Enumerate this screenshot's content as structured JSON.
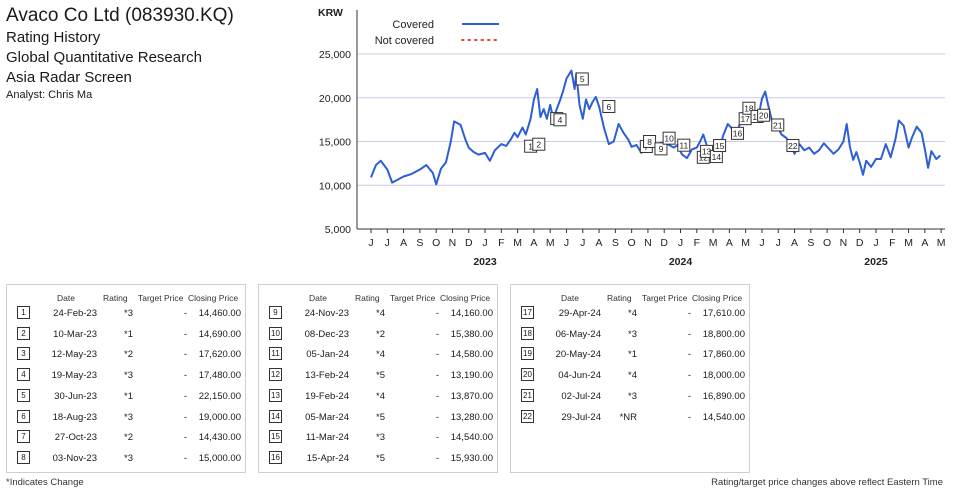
{
  "header": {
    "title": "Avaco Co Ltd (083930.KQ)",
    "subtitle1": "Rating History",
    "subtitle2": "Global Quantitative Research",
    "subtitle3": "Asia Radar Screen",
    "analyst": "Analyst: Chris Ma"
  },
  "colors": {
    "covered": "#2c5ed6",
    "not_covered": "#e8432e",
    "grid": "#c9cbe9"
  },
  "chart_data": {
    "type": "line",
    "ylabel": "KRW",
    "ylim": [
      5000,
      25000
    ],
    "yticks": [
      "5,000",
      "10,000",
      "15,000",
      "20,000",
      "25,000"
    ],
    "ytick_values": [
      5000,
      10000,
      15000,
      20000,
      25000
    ],
    "month_labels": [
      "J",
      "J",
      "A",
      "S",
      "O",
      "N",
      "D",
      "J",
      "F",
      "M",
      "A",
      "M",
      "J",
      "J",
      "A",
      "S",
      "O",
      "N",
      "D",
      "J",
      "F",
      "M",
      "A",
      "M",
      "J",
      "J",
      "A",
      "S",
      "O",
      "N",
      "D",
      "J",
      "F",
      "M",
      "A",
      "M"
    ],
    "year_labels": [
      {
        "label": "2023",
        "month_index": 7
      },
      {
        "label": "2024",
        "month_index": 19
      },
      {
        "label": "2025",
        "month_index": 31
      }
    ],
    "legend": [
      {
        "name": "Covered",
        "style": "solid"
      },
      {
        "name": "Not covered",
        "style": "dotted"
      }
    ],
    "series": [
      {
        "name": "Covered",
        "points": [
          [
            0,
            10900
          ],
          [
            0.3,
            12300
          ],
          [
            0.6,
            12800
          ],
          [
            1.0,
            11800
          ],
          [
            1.3,
            10300
          ],
          [
            1.7,
            10700
          ],
          [
            2.0,
            11000
          ],
          [
            2.5,
            11300
          ],
          [
            3.0,
            11800
          ],
          [
            3.4,
            12300
          ],
          [
            3.8,
            11400
          ],
          [
            4.0,
            10100
          ],
          [
            4.3,
            11900
          ],
          [
            4.6,
            12600
          ],
          [
            4.9,
            15000
          ],
          [
            5.1,
            17300
          ],
          [
            5.5,
            16900
          ],
          [
            5.8,
            15200
          ],
          [
            6.0,
            14300
          ],
          [
            6.3,
            13800
          ],
          [
            6.6,
            13500
          ],
          [
            7.0,
            13700
          ],
          [
            7.3,
            12800
          ],
          [
            7.6,
            14000
          ],
          [
            8.0,
            14700
          ],
          [
            8.3,
            14500
          ],
          [
            8.6,
            15300
          ],
          [
            8.8,
            16000
          ],
          [
            9.0,
            15500
          ],
          [
            9.3,
            16600
          ],
          [
            9.5,
            15800
          ],
          [
            9.8,
            17600
          ],
          [
            10.0,
            19800
          ],
          [
            10.2,
            21000
          ],
          [
            10.4,
            17800
          ],
          [
            10.6,
            18700
          ],
          [
            10.8,
            17600
          ],
          [
            11.0,
            19200
          ],
          [
            11.2,
            17500
          ],
          [
            11.4,
            18700
          ],
          [
            11.6,
            19700
          ],
          [
            11.8,
            20800
          ],
          [
            12.0,
            22200
          ],
          [
            12.3,
            23100
          ],
          [
            12.5,
            21000
          ],
          [
            12.6,
            22800
          ],
          [
            12.8,
            19200
          ],
          [
            13.0,
            17600
          ],
          [
            13.2,
            19800
          ],
          [
            13.4,
            18700
          ],
          [
            13.6,
            19500
          ],
          [
            13.8,
            20100
          ],
          [
            14.0,
            19000
          ],
          [
            14.3,
            16600
          ],
          [
            14.6,
            14700
          ],
          [
            14.9,
            15000
          ],
          [
            15.2,
            17000
          ],
          [
            15.5,
            16000
          ],
          [
            15.8,
            15200
          ],
          [
            16.0,
            14400
          ],
          [
            16.3,
            14600
          ],
          [
            16.6,
            13700
          ],
          [
            16.9,
            15500
          ],
          [
            17.1,
            15400
          ],
          [
            17.4,
            14500
          ],
          [
            17.7,
            14800
          ],
          [
            18.0,
            14900
          ],
          [
            18.3,
            14600
          ],
          [
            18.6,
            14300
          ],
          [
            18.8,
            14600
          ],
          [
            19.1,
            13500
          ],
          [
            19.4,
            13100
          ],
          [
            19.7,
            14100
          ],
          [
            20.0,
            14300
          ],
          [
            20.2,
            15000
          ],
          [
            20.4,
            15800
          ],
          [
            20.6,
            14600
          ],
          [
            20.8,
            13300
          ],
          [
            21.0,
            13900
          ],
          [
            21.3,
            13200
          ],
          [
            21.6,
            15600
          ],
          [
            21.9,
            17000
          ],
          [
            22.2,
            16400
          ],
          [
            22.5,
            16300
          ],
          [
            22.8,
            17700
          ],
          [
            23.0,
            18800
          ],
          [
            23.2,
            17900
          ],
          [
            23.4,
            19300
          ],
          [
            23.6,
            18300
          ],
          [
            23.8,
            18000
          ],
          [
            24.0,
            19900
          ],
          [
            24.2,
            20700
          ],
          [
            24.4,
            19000
          ],
          [
            24.6,
            17500
          ],
          [
            24.9,
            16900
          ],
          [
            25.2,
            15800
          ],
          [
            25.5,
            15400
          ],
          [
            25.8,
            14500
          ],
          [
            26.0,
            13600
          ],
          [
            26.3,
            14700
          ],
          [
            26.6,
            14000
          ],
          [
            26.9,
            14300
          ],
          [
            27.2,
            13600
          ],
          [
            27.5,
            14000
          ],
          [
            27.8,
            14800
          ],
          [
            28.1,
            14200
          ],
          [
            28.4,
            13600
          ],
          [
            28.7,
            14100
          ],
          [
            29.0,
            15000
          ],
          [
            29.2,
            17000
          ],
          [
            29.4,
            14400
          ],
          [
            29.6,
            12900
          ],
          [
            29.8,
            13800
          ],
          [
            30.0,
            12600
          ],
          [
            30.2,
            11200
          ],
          [
            30.4,
            12800
          ],
          [
            30.7,
            12100
          ],
          [
            31.0,
            13000
          ],
          [
            31.3,
            13000
          ],
          [
            31.6,
            14700
          ],
          [
            31.9,
            13200
          ],
          [
            32.2,
            15300
          ],
          [
            32.4,
            17400
          ],
          [
            32.7,
            16800
          ],
          [
            33.0,
            14300
          ],
          [
            33.2,
            15400
          ],
          [
            33.5,
            16700
          ],
          [
            33.8,
            16000
          ],
          [
            34.0,
            14100
          ],
          [
            34.2,
            12000
          ],
          [
            34.4,
            13900
          ],
          [
            34.7,
            13000
          ],
          [
            34.95,
            13400
          ]
        ]
      }
    ],
    "markers": [
      {
        "id": "1",
        "x": 9.8,
        "y": 14460
      },
      {
        "id": "2",
        "x": 10.3,
        "y": 14690
      },
      {
        "id": "3",
        "x": 11.4,
        "y": 17620
      },
      {
        "id": "4",
        "x": 11.6,
        "y": 17480
      },
      {
        "id": "5",
        "x": 12.97,
        "y": 22150
      },
      {
        "id": "6",
        "x": 14.6,
        "y": 19000
      },
      {
        "id": "7",
        "x": 16.9,
        "y": 14430
      },
      {
        "id": "8",
        "x": 17.1,
        "y": 15000
      },
      {
        "id": "9",
        "x": 17.8,
        "y": 14160
      },
      {
        "id": "10",
        "x": 18.3,
        "y": 15380
      },
      {
        "id": "11",
        "x": 19.2,
        "y": 14580
      },
      {
        "id": "12",
        "x": 20.4,
        "y": 13190
      },
      {
        "id": "13",
        "x": 20.6,
        "y": 13870
      },
      {
        "id": "14",
        "x": 21.2,
        "y": 13280
      },
      {
        "id": "15",
        "x": 21.4,
        "y": 14540
      },
      {
        "id": "16",
        "x": 22.5,
        "y": 15930
      },
      {
        "id": "17",
        "x": 22.97,
        "y": 17610
      },
      {
        "id": "18",
        "x": 23.2,
        "y": 18800
      },
      {
        "id": "19",
        "x": 23.7,
        "y": 17860
      },
      {
        "id": "20",
        "x": 24.1,
        "y": 18000
      },
      {
        "id": "21",
        "x": 24.97,
        "y": 16890
      },
      {
        "id": "22",
        "x": 25.9,
        "y": 14540
      }
    ]
  },
  "table_headers": {
    "date": "Date",
    "rating": "Rating",
    "target": "Target Price",
    "closing": "Closing Price"
  },
  "tables": [
    [
      {
        "n": "1",
        "date": "24-Feb-23",
        "rating": "*3",
        "target": "-",
        "closing": "14,460.00"
      },
      {
        "n": "2",
        "date": "10-Mar-23",
        "rating": "*1",
        "target": "-",
        "closing": "14,690.00"
      },
      {
        "n": "3",
        "date": "12-May-23",
        "rating": "*2",
        "target": "-",
        "closing": "17,620.00"
      },
      {
        "n": "4",
        "date": "19-May-23",
        "rating": "*3",
        "target": "-",
        "closing": "17,480.00"
      },
      {
        "n": "5",
        "date": "30-Jun-23",
        "rating": "*1",
        "target": "-",
        "closing": "22,150.00"
      },
      {
        "n": "6",
        "date": "18-Aug-23",
        "rating": "*3",
        "target": "-",
        "closing": "19,000.00"
      },
      {
        "n": "7",
        "date": "27-Oct-23",
        "rating": "*2",
        "target": "-",
        "closing": "14,430.00"
      },
      {
        "n": "8",
        "date": "03-Nov-23",
        "rating": "*3",
        "target": "-",
        "closing": "15,000.00"
      }
    ],
    [
      {
        "n": "9",
        "date": "24-Nov-23",
        "rating": "*4",
        "target": "-",
        "closing": "14,160.00"
      },
      {
        "n": "10",
        "date": "08-Dec-23",
        "rating": "*2",
        "target": "-",
        "closing": "15,380.00"
      },
      {
        "n": "11",
        "date": "05-Jan-24",
        "rating": "*4",
        "target": "-",
        "closing": "14,580.00"
      },
      {
        "n": "12",
        "date": "13-Feb-24",
        "rating": "*5",
        "target": "-",
        "closing": "13,190.00"
      },
      {
        "n": "13",
        "date": "19-Feb-24",
        "rating": "*4",
        "target": "-",
        "closing": "13,870.00"
      },
      {
        "n": "14",
        "date": "05-Mar-24",
        "rating": "*5",
        "target": "-",
        "closing": "13,280.00"
      },
      {
        "n": "15",
        "date": "11-Mar-24",
        "rating": "*3",
        "target": "-",
        "closing": "14,540.00"
      },
      {
        "n": "16",
        "date": "15-Apr-24",
        "rating": "*5",
        "target": "-",
        "closing": "15,930.00"
      }
    ],
    [
      {
        "n": "17",
        "date": "29-Apr-24",
        "rating": "*4",
        "target": "-",
        "closing": "17,610.00"
      },
      {
        "n": "18",
        "date": "06-May-24",
        "rating": "*3",
        "target": "-",
        "closing": "18,800.00"
      },
      {
        "n": "19",
        "date": "20-May-24",
        "rating": "*1",
        "target": "-",
        "closing": "17,860.00"
      },
      {
        "n": "20",
        "date": "04-Jun-24",
        "rating": "*4",
        "target": "-",
        "closing": "18,000.00"
      },
      {
        "n": "21",
        "date": "02-Jul-24",
        "rating": "*3",
        "target": "-",
        "closing": "16,890.00"
      },
      {
        "n": "22",
        "date": "29-Jul-24",
        "rating": "*NR",
        "target": "-",
        "closing": "14,540.00"
      }
    ]
  ],
  "footer": {
    "left": "*Indicates Change",
    "right": "Rating/target price changes above reflect Eastern Time"
  }
}
